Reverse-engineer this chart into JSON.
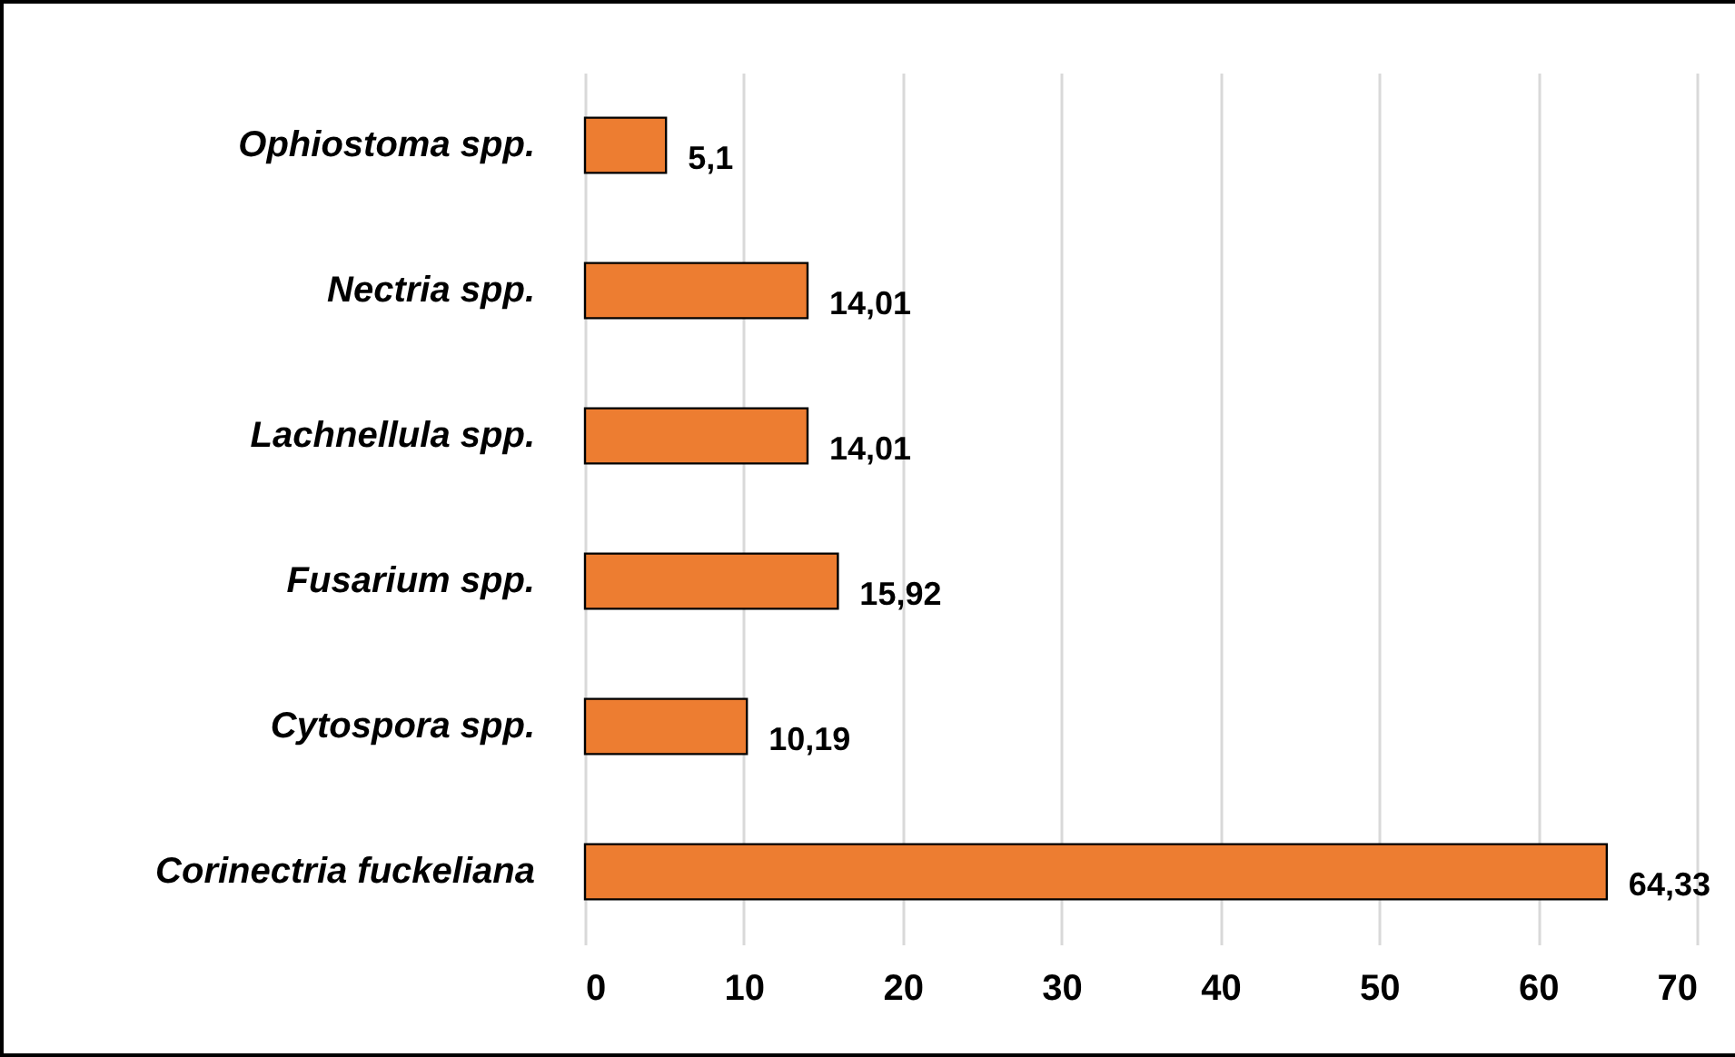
{
  "chart_data": {
    "type": "bar",
    "orientation": "horizontal",
    "categories": [
      "Ophiostoma spp.",
      "Nectria spp.",
      "Lachnellula spp.",
      "Fusarium spp.",
      "Cytospora spp.",
      "Corinectria fuckeliana"
    ],
    "values": [
      5.1,
      14.01,
      14.01,
      15.92,
      10.19,
      64.33
    ],
    "value_labels": [
      "5,1",
      "14,01",
      "14,01",
      "15,92",
      "10,19",
      "64,33"
    ],
    "color": "#ed7d31",
    "xlim": [
      0,
      70
    ],
    "xticks": [
      0,
      10,
      20,
      30,
      40,
      50,
      60,
      70
    ],
    "grid": "x"
  }
}
